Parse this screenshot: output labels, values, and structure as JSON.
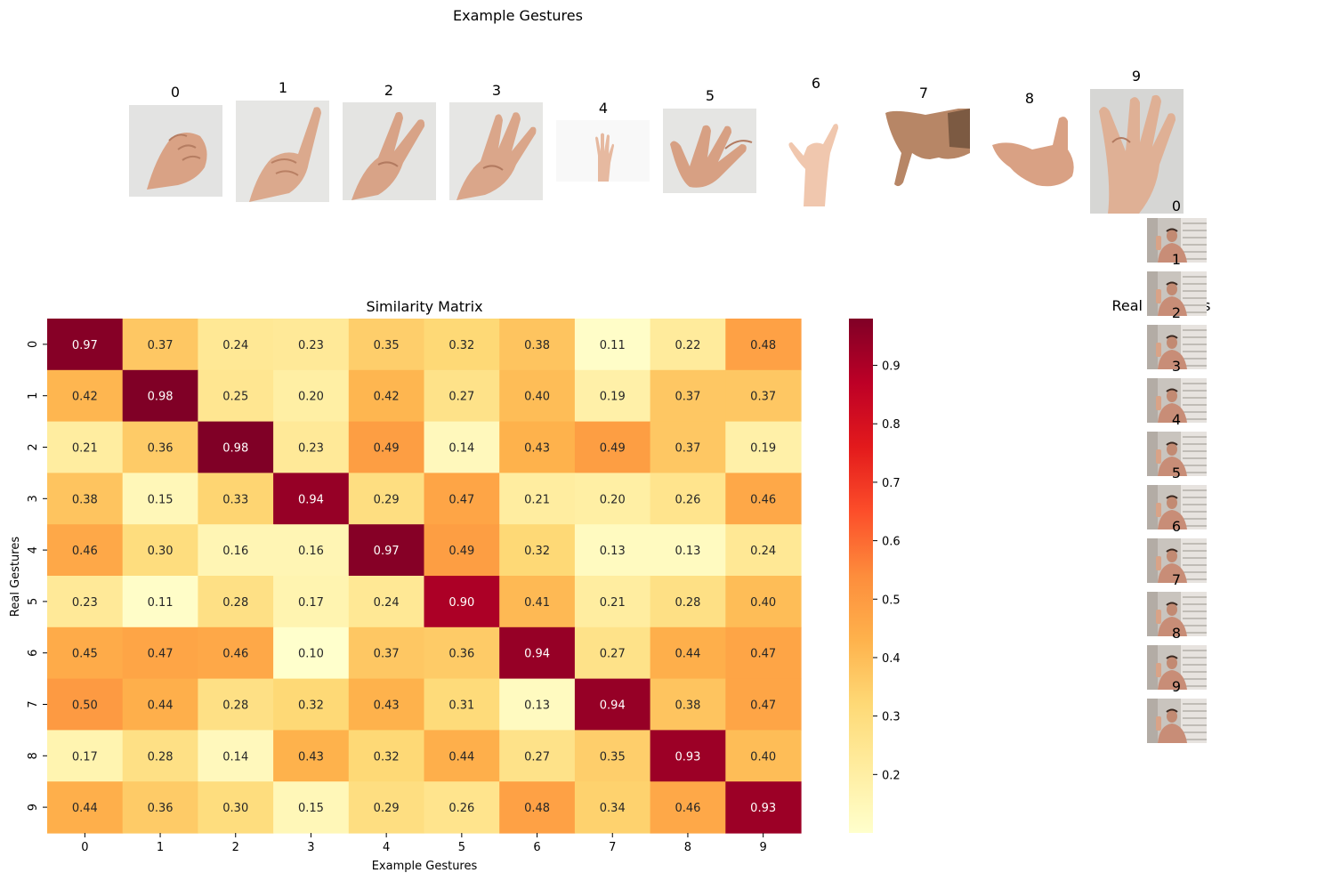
{
  "example_section": {
    "title": "Example Gestures",
    "labels": [
      "0",
      "1",
      "2",
      "3",
      "4",
      "5",
      "6",
      "7",
      "8",
      "9"
    ]
  },
  "real_section": {
    "title": "Real Gestures",
    "labels": [
      "0",
      "1",
      "2",
      "3",
      "4",
      "5",
      "6",
      "7",
      "8",
      "9"
    ]
  },
  "chart_data": {
    "type": "heatmap",
    "title": "Similarity Matrix",
    "xlabel": "Example Gestures",
    "ylabel": "Real Gestures",
    "x_categories": [
      "0",
      "1",
      "2",
      "3",
      "4",
      "5",
      "6",
      "7",
      "8",
      "9"
    ],
    "y_categories": [
      "0",
      "1",
      "2",
      "3",
      "4",
      "5",
      "6",
      "7",
      "8",
      "9"
    ],
    "values": [
      [
        0.97,
        0.37,
        0.24,
        0.23,
        0.35,
        0.32,
        0.38,
        0.11,
        0.22,
        0.48
      ],
      [
        0.42,
        0.98,
        0.25,
        0.2,
        0.42,
        0.27,
        0.4,
        0.19,
        0.37,
        0.37
      ],
      [
        0.21,
        0.36,
        0.98,
        0.23,
        0.49,
        0.14,
        0.43,
        0.49,
        0.37,
        0.19
      ],
      [
        0.38,
        0.15,
        0.33,
        0.94,
        0.29,
        0.47,
        0.21,
        0.2,
        0.26,
        0.46
      ],
      [
        0.46,
        0.3,
        0.16,
        0.16,
        0.97,
        0.49,
        0.32,
        0.13,
        0.13,
        0.24
      ],
      [
        0.23,
        0.11,
        0.28,
        0.17,
        0.24,
        0.9,
        0.41,
        0.21,
        0.28,
        0.4
      ],
      [
        0.45,
        0.47,
        0.46,
        0.1,
        0.37,
        0.36,
        0.94,
        0.27,
        0.44,
        0.47
      ],
      [
        0.5,
        0.44,
        0.28,
        0.32,
        0.43,
        0.31,
        0.13,
        0.94,
        0.38,
        0.47
      ],
      [
        0.17,
        0.28,
        0.14,
        0.43,
        0.32,
        0.44,
        0.27,
        0.35,
        0.93,
        0.4
      ],
      [
        0.44,
        0.36,
        0.3,
        0.15,
        0.29,
        0.26,
        0.48,
        0.34,
        0.46,
        0.93
      ]
    ],
    "colormap": "YlOrRd",
    "vmin": 0.1,
    "vmax": 0.98,
    "colorbar_ticks": [
      "0.2",
      "0.3",
      "0.4",
      "0.5",
      "0.6",
      "0.7",
      "0.8",
      "0.9"
    ],
    "annotate": true
  }
}
